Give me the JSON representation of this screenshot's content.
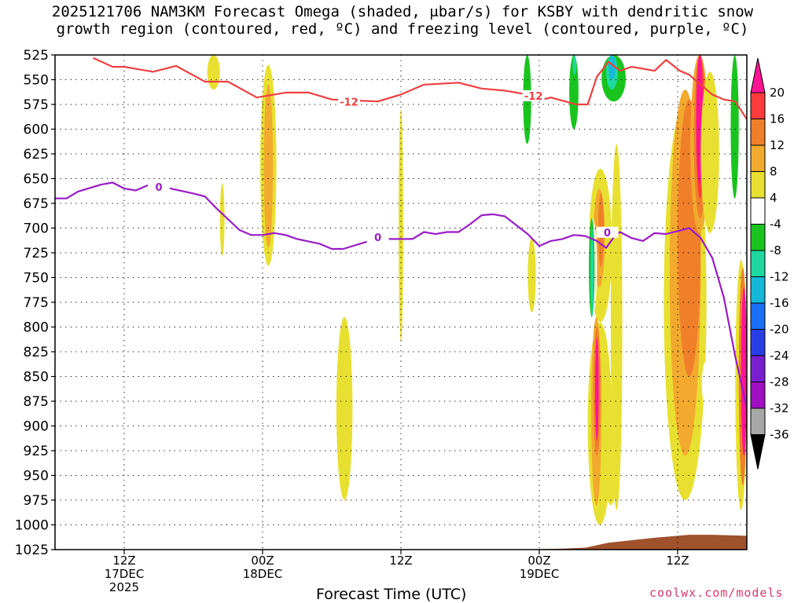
{
  "title": {
    "line1": "2025121706 NAM3KM Forecast Omega (shaded, μbar/s) for KSBY with dendritic snow",
    "line2": "growth region (contoured, red, ºC) and freezing level (contoured, purple, ºC)"
  },
  "footer": {
    "xlabel": "Forecast Time (UTC)",
    "credit": "coolwx.com/models"
  },
  "chart_data": {
    "type": "heatmap",
    "description_type": "time-height cross section",
    "y_axis": {
      "label": "",
      "ticks": [
        525,
        550,
        575,
        600,
        625,
        650,
        675,
        700,
        725,
        750,
        775,
        800,
        825,
        850,
        875,
        900,
        925,
        950,
        975,
        1000,
        1025
      ],
      "range": [
        525,
        1025
      ],
      "orientation": "pressure decreasing upward"
    },
    "x_axis": {
      "label": "Forecast Time (UTC)",
      "range_hours": [
        0,
        60
      ],
      "ticks": [
        {
          "hour": 6,
          "lines": [
            "12Z",
            "17DEC",
            "2025"
          ]
        },
        {
          "hour": 18,
          "lines": [
            "00Z",
            "18DEC"
          ]
        },
        {
          "hour": 30,
          "lines": [
            "12Z"
          ]
        },
        {
          "hour": 42,
          "lines": [
            "00Z",
            "19DEC"
          ]
        },
        {
          "hour": 54,
          "lines": [
            "12Z"
          ]
        }
      ]
    },
    "grid": true,
    "colorbar": {
      "levels": [
        20,
        16,
        12,
        8,
        4,
        -4,
        -8,
        -12,
        -16,
        -20,
        -24,
        -28,
        -32,
        -36
      ],
      "colors": [
        "#ff1493",
        "#ff3a3a",
        "#f07f2a",
        "#f2aa2e",
        "#e8e030",
        "#ffffff",
        "#19c41f",
        "#1fd8a0",
        "#14b8d8",
        "#1a6ff5",
        "#2a3ee8",
        "#7a1fd0",
        "#a010c0",
        "#a8a8a8"
      ]
    },
    "contours": [
      {
        "name": "-12",
        "color": "#ee4040",
        "points": [
          [
            3.3,
            528
          ],
          [
            5,
            537
          ],
          [
            6,
            537
          ],
          [
            8.5,
            542
          ],
          [
            10.5,
            536
          ],
          [
            13,
            552
          ],
          [
            15,
            552
          ],
          [
            17.5,
            568
          ],
          [
            18.5,
            566
          ],
          [
            20,
            563
          ],
          [
            22,
            563
          ],
          [
            24,
            570
          ],
          [
            26,
            571
          ],
          [
            28,
            572
          ],
          [
            30,
            565
          ],
          [
            32,
            555
          ],
          [
            35,
            553
          ],
          [
            37,
            559
          ],
          [
            39,
            561
          ],
          [
            41,
            565
          ],
          [
            42.3,
            570
          ],
          [
            43,
            568
          ],
          [
            45.2,
            575
          ],
          [
            46.2,
            575
          ],
          [
            47,
            547
          ],
          [
            48,
            532
          ],
          [
            49,
            541
          ],
          [
            50,
            537
          ],
          [
            51,
            539
          ],
          [
            52,
            541
          ],
          [
            53,
            530
          ],
          [
            54.2,
            541
          ],
          [
            55,
            545
          ],
          [
            56,
            555
          ],
          [
            57,
            565
          ],
          [
            58,
            570
          ],
          [
            59,
            572
          ],
          [
            60,
            590
          ]
        ],
        "labels": [
          {
            "hour": 25.5,
            "pressure": 573
          },
          {
            "hour": 41.5,
            "pressure": 567
          }
        ]
      },
      {
        "name": "0",
        "color": "#9a1bc8",
        "points": [
          [
            0,
            670
          ],
          [
            1,
            670
          ],
          [
            2,
            663
          ],
          [
            4,
            656
          ],
          [
            5,
            654
          ],
          [
            6,
            660
          ],
          [
            7,
            662
          ],
          [
            8,
            657
          ],
          [
            9,
            655
          ],
          [
            10,
            660
          ],
          [
            12,
            665
          ],
          [
            13,
            668
          ],
          [
            14,
            680
          ],
          [
            16,
            702
          ],
          [
            17,
            707
          ],
          [
            18,
            707
          ],
          [
            19,
            705
          ],
          [
            20,
            707
          ],
          [
            21,
            711
          ],
          [
            23,
            716
          ],
          [
            24,
            721
          ],
          [
            25,
            721
          ],
          [
            27,
            714
          ],
          [
            28,
            711
          ],
          [
            29,
            711
          ],
          [
            31,
            711
          ],
          [
            32,
            704
          ],
          [
            33,
            706
          ],
          [
            34,
            704
          ],
          [
            35,
            704
          ],
          [
            36,
            696
          ],
          [
            37,
            687
          ],
          [
            38,
            686
          ],
          [
            39,
            688
          ],
          [
            40,
            697
          ],
          [
            41,
            706
          ],
          [
            42,
            718
          ],
          [
            43,
            713
          ],
          [
            44,
            711
          ],
          [
            45,
            707
          ],
          [
            46,
            708
          ],
          [
            47,
            713
          ],
          [
            47.8,
            720
          ],
          [
            48.6,
            707
          ],
          [
            49,
            704
          ],
          [
            50,
            710
          ],
          [
            51,
            713
          ],
          [
            52,
            705
          ],
          [
            53,
            706
          ],
          [
            54,
            703
          ],
          [
            55,
            700
          ],
          [
            56,
            710
          ],
          [
            57,
            730
          ],
          [
            58,
            770
          ],
          [
            59,
            830
          ],
          [
            60,
            882
          ]
        ],
        "labels": [
          {
            "hour": 9,
            "pressure": 659
          },
          {
            "hour": 28,
            "pressure": 710
          },
          {
            "hour": 47.9,
            "pressure": 705
          }
        ]
      }
    ],
    "surface_fill_color": "#a0522d"
  }
}
